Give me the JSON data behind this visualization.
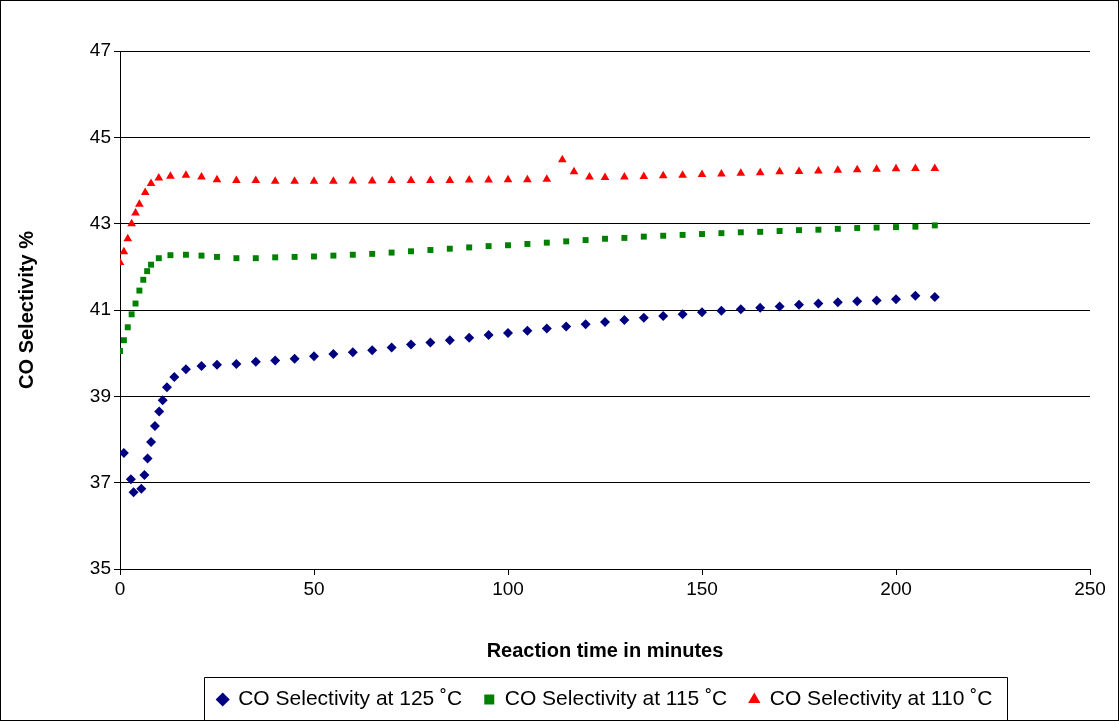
{
  "chart_data": {
    "type": "scatter",
    "xlabel": "Reaction time in minutes",
    "ylabel": "CO Selectivity %",
    "xlim": [
      0,
      250
    ],
    "xticks": [
      0,
      50,
      100,
      150,
      200,
      250
    ],
    "ylim": [
      35,
      47
    ],
    "yticks": [
      35,
      37,
      39,
      41,
      43,
      45,
      47
    ],
    "grid": "y",
    "legend": "bottom",
    "series": [
      {
        "name": "CO Selectivity at 125 ˚C",
        "color": "#000080",
        "marker": "diamond",
        "x": [
          1,
          2.8,
          3.5,
          5.5,
          6.3,
          7.1,
          8,
          9,
          10.1,
          11,
          12.1,
          14,
          17,
          21,
          25,
          30,
          35,
          40,
          45,
          50,
          55,
          60,
          65,
          70,
          75,
          80,
          85,
          90,
          95,
          100,
          105,
          110,
          115,
          120,
          125,
          130,
          135,
          140,
          145,
          150,
          155,
          160,
          165,
          170,
          175,
          180,
          185,
          190,
          195,
          200,
          205,
          210
        ],
        "values": [
          37.69,
          37.08,
          36.78,
          36.86,
          37.18,
          37.56,
          37.94,
          38.31,
          38.65,
          38.91,
          39.21,
          39.45,
          39.63,
          39.7,
          39.73,
          39.75,
          39.8,
          39.83,
          39.87,
          39.93,
          39.98,
          40.02,
          40.07,
          40.13,
          40.2,
          40.25,
          40.3,
          40.36,
          40.42,
          40.47,
          40.52,
          40.57,
          40.62,
          40.67,
          40.72,
          40.77,
          40.82,
          40.86,
          40.9,
          40.95,
          40.98,
          41.02,
          41.05,
          41.08,
          41.12,
          41.15,
          41.18,
          41.2,
          41.22,
          41.25,
          41.33,
          41.3
        ]
      },
      {
        "name": "CO Selectivity at 115 ˚C",
        "color": "#008000",
        "marker": "square",
        "x": [
          0,
          1,
          2,
          3,
          4,
          5,
          6,
          7,
          8,
          10,
          13,
          17,
          21,
          25,
          30,
          35,
          40,
          45,
          50,
          55,
          60,
          65,
          70,
          75,
          80,
          85,
          90,
          95,
          100,
          105,
          110,
          115,
          120,
          125,
          130,
          135,
          140,
          145,
          150,
          155,
          160,
          165,
          170,
          175,
          180,
          185,
          190,
          195,
          200,
          205,
          210
        ],
        "values": [
          40.05,
          40.3,
          40.6,
          40.9,
          41.15,
          41.45,
          41.7,
          41.9,
          42.05,
          42.2,
          42.27,
          42.28,
          42.26,
          42.23,
          42.2,
          42.2,
          42.22,
          42.23,
          42.24,
          42.26,
          42.28,
          42.3,
          42.33,
          42.36,
          42.39,
          42.42,
          42.45,
          42.48,
          42.5,
          42.53,
          42.56,
          42.59,
          42.62,
          42.65,
          42.67,
          42.7,
          42.72,
          42.74,
          42.76,
          42.78,
          42.8,
          42.81,
          42.83,
          42.85,
          42.86,
          42.88,
          42.9,
          42.91,
          42.92,
          42.93,
          42.96
        ]
      },
      {
        "name": "CO Selectivity at 110 ˚C",
        "color": "#ff0000",
        "marker": "triangle",
        "x": [
          0,
          1,
          2,
          3,
          4,
          5,
          6.5,
          8,
          10,
          13,
          17,
          21,
          25,
          30,
          35,
          40,
          45,
          50,
          55,
          60,
          65,
          70,
          75,
          80,
          85,
          90,
          95,
          100,
          105,
          110,
          114,
          117,
          121,
          125,
          130,
          135,
          140,
          145,
          150,
          155,
          160,
          165,
          170,
          175,
          180,
          185,
          190,
          195,
          200,
          205,
          210
        ],
        "values": [
          42.1,
          42.35,
          42.65,
          43.0,
          43.25,
          43.45,
          43.72,
          43.93,
          44.06,
          44.1,
          44.12,
          44.08,
          44.02,
          44.0,
          44.0,
          43.98,
          43.98,
          43.98,
          43.98,
          43.99,
          43.99,
          44.0,
          44.0,
          44.0,
          44.0,
          44.01,
          44.01,
          44.02,
          44.02,
          44.03,
          44.48,
          44.2,
          44.08,
          44.07,
          44.08,
          44.09,
          44.11,
          44.12,
          44.14,
          44.15,
          44.17,
          44.18,
          44.2,
          44.21,
          44.22,
          44.24,
          44.25,
          44.26,
          44.27,
          44.28,
          44.28
        ]
      }
    ]
  }
}
